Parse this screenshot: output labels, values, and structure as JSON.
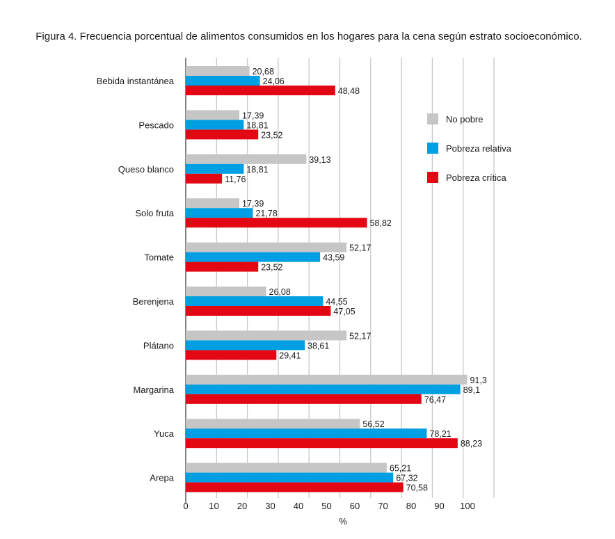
{
  "chart_data": {
    "type": "bar",
    "orientation": "horizontal",
    "title": "Figura 4. Frecuencia porcentual de alimentos consumidos en los hogares para la cena según estrato socioeconómico.",
    "xlabel": "%",
    "ylabel": "",
    "xlim": [
      0,
      100
    ],
    "x_ticks": [
      "0",
      "10",
      "20",
      "30",
      "40",
      "50",
      "60",
      "70",
      "80",
      "90",
      "100"
    ],
    "grid": true,
    "legend_position": "right",
    "categories": [
      "Bebida instantánea",
      "Pescado",
      "Queso blanco",
      "Solo fruta",
      "Tomate",
      "Berenjena",
      "Plátano",
      "Margarina",
      "Yuca",
      "Arepa"
    ],
    "series": [
      {
        "name": "No pobre",
        "color": "#c6c6c6",
        "values": [
          20.68,
          17.39,
          39.13,
          17.39,
          52.17,
          26.08,
          52.17,
          91.3,
          56.52,
          65.21
        ],
        "labels": [
          "20,68",
          "17,39",
          "39,13",
          "17,39",
          "52,17",
          "26,08",
          "52,17",
          "91,3",
          "56,52",
          "65,21"
        ]
      },
      {
        "name": "Pobreza relativa",
        "color": "#009fe3",
        "values": [
          24.06,
          18.81,
          18.81,
          21.78,
          43.59,
          44.55,
          38.61,
          89.1,
          78.21,
          67.32
        ],
        "labels": [
          "24,06",
          "18,81",
          "18,81",
          "21,78",
          "43,59",
          "44,55",
          "38,61",
          "89,1",
          "78,21",
          "67,32"
        ]
      },
      {
        "name": "Pobreza crítica",
        "color": "#e30613",
        "values": [
          48.48,
          23.52,
          11.76,
          58.82,
          23.52,
          47.05,
          29.41,
          76.47,
          88.23,
          70.58
        ],
        "labels": [
          "48,48",
          "23,52",
          "11,76",
          "58,82",
          "23,52",
          "47,05",
          "29,41",
          "76,47",
          "88,23",
          "70,58"
        ]
      }
    ]
  }
}
